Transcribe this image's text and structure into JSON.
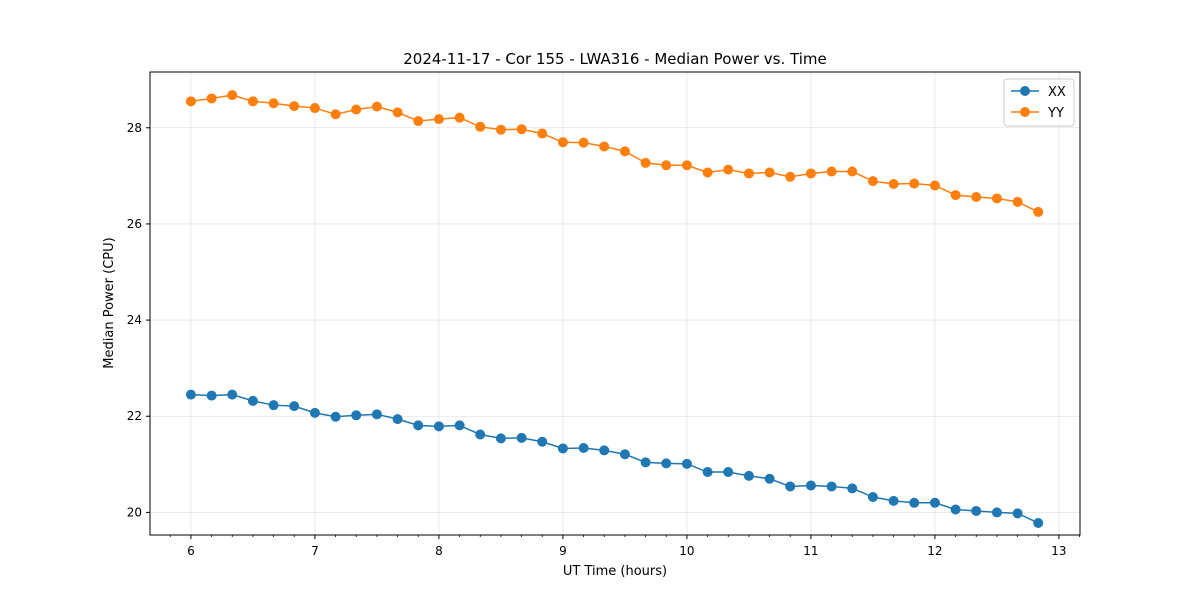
{
  "chart_data": {
    "type": "line",
    "title": "2024-11-17 - Cor 155 - LWA316 - Median Power vs. Time",
    "xlabel": "UT Time (hours)",
    "ylabel": "Median Power (CPU)",
    "xlim": [
      5.67,
      13.17
    ],
    "ylim": [
      19.53,
      29.16
    ],
    "xticks": [
      6,
      7,
      8,
      9,
      10,
      11,
      12,
      13
    ],
    "yticks": [
      20,
      22,
      24,
      26,
      28
    ],
    "grid": true,
    "legend_position": "top-right",
    "x": [
      6.0,
      6.167,
      6.333,
      6.5,
      6.667,
      6.833,
      7.0,
      7.167,
      7.333,
      7.5,
      7.667,
      7.833,
      8.0,
      8.167,
      8.333,
      8.5,
      8.667,
      8.833,
      9.0,
      9.167,
      9.333,
      9.5,
      9.667,
      9.833,
      10.0,
      10.167,
      10.333,
      10.5,
      10.667,
      10.833,
      11.0,
      11.167,
      11.333,
      11.5,
      11.667,
      11.833,
      12.0,
      12.167,
      12.333,
      12.5,
      12.667,
      12.833
    ],
    "series": [
      {
        "name": "XX",
        "color": "#1f77b4",
        "values": [
          22.45,
          22.43,
          22.45,
          22.32,
          22.23,
          22.21,
          22.07,
          21.99,
          22.02,
          22.04,
          21.94,
          21.81,
          21.79,
          21.81,
          21.62,
          21.54,
          21.55,
          21.47,
          21.33,
          21.34,
          21.29,
          21.21,
          21.04,
          21.02,
          21.01,
          20.84,
          20.84,
          20.76,
          20.7,
          20.54,
          20.56,
          20.54,
          20.5,
          20.32,
          20.24,
          20.2,
          20.2,
          20.06,
          20.03,
          20.0,
          19.98,
          19.78
        ]
      },
      {
        "name": "YY",
        "color": "#ff7f0e",
        "values": [
          28.55,
          28.61,
          28.68,
          28.55,
          28.51,
          28.45,
          28.41,
          28.28,
          28.38,
          28.44,
          28.32,
          28.14,
          28.18,
          28.21,
          28.02,
          27.96,
          27.97,
          27.88,
          27.7,
          27.69,
          27.61,
          27.51,
          27.27,
          27.22,
          27.22,
          27.07,
          27.13,
          27.05,
          27.07,
          26.98,
          27.05,
          27.09,
          27.09,
          26.89,
          26.83,
          26.84,
          26.8,
          26.6,
          26.56,
          26.53,
          26.46,
          26.25
        ]
      }
    ]
  }
}
